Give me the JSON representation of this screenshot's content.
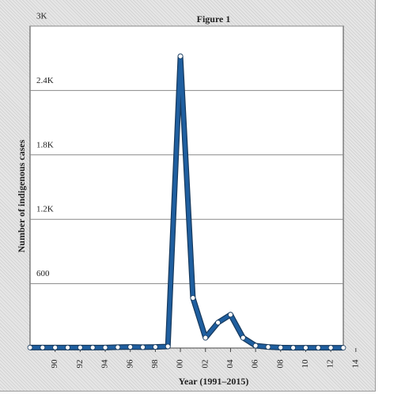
{
  "chart_data": {
    "type": "line",
    "title": "Figure  1",
    "x_label": "Year (1991–2015)",
    "y_label": "Number of indigenous cases",
    "x": [
      1988,
      1989,
      1990,
      1991,
      1992,
      1993,
      1994,
      1995,
      1996,
      1997,
      1998,
      1999,
      2000,
      2001,
      2002,
      2003,
      2004,
      2005,
      2006,
      2007,
      2008,
      2009,
      2010,
      2011,
      2012,
      2013
    ],
    "series": [
      {
        "name": "Indigenous cases",
        "color": "#1f5fa0",
        "values": [
          5,
          5,
          5,
          5,
          5,
          5,
          5,
          8,
          10,
          8,
          10,
          15,
          2719,
          467,
          96,
          237,
          311,
          96,
          22,
          10,
          5,
          3,
          3,
          3,
          3,
          3
        ]
      }
    ],
    "xlim": [
      1988,
      2013
    ],
    "xticks": [
      {
        "value": 1990,
        "label": "90"
      },
      {
        "value": 1992,
        "label": "92"
      },
      {
        "value": 1994,
        "label": "94"
      },
      {
        "value": 1996,
        "label": "96"
      },
      {
        "value": 1998,
        "label": "98"
      },
      {
        "value": 2000,
        "label": "00"
      },
      {
        "value": 2002,
        "label": "02"
      },
      {
        "value": 2004,
        "label": "04"
      },
      {
        "value": 2006,
        "label": "06"
      },
      {
        "value": 2008,
        "label": "08"
      },
      {
        "value": 2010,
        "label": "10"
      },
      {
        "value": 2012,
        "label": "12"
      },
      {
        "value": 2014,
        "label": "14"
      }
    ],
    "ylim": [
      0,
      3000
    ],
    "yticks": [
      {
        "value": 600,
        "label": "600"
      },
      {
        "value": 1200,
        "label": "1.2K"
      },
      {
        "value": 1800,
        "label": "1.8K"
      },
      {
        "value": 2400,
        "label": "2.4K"
      },
      {
        "value": 3000,
        "label": "3K"
      }
    ],
    "grid": true
  }
}
